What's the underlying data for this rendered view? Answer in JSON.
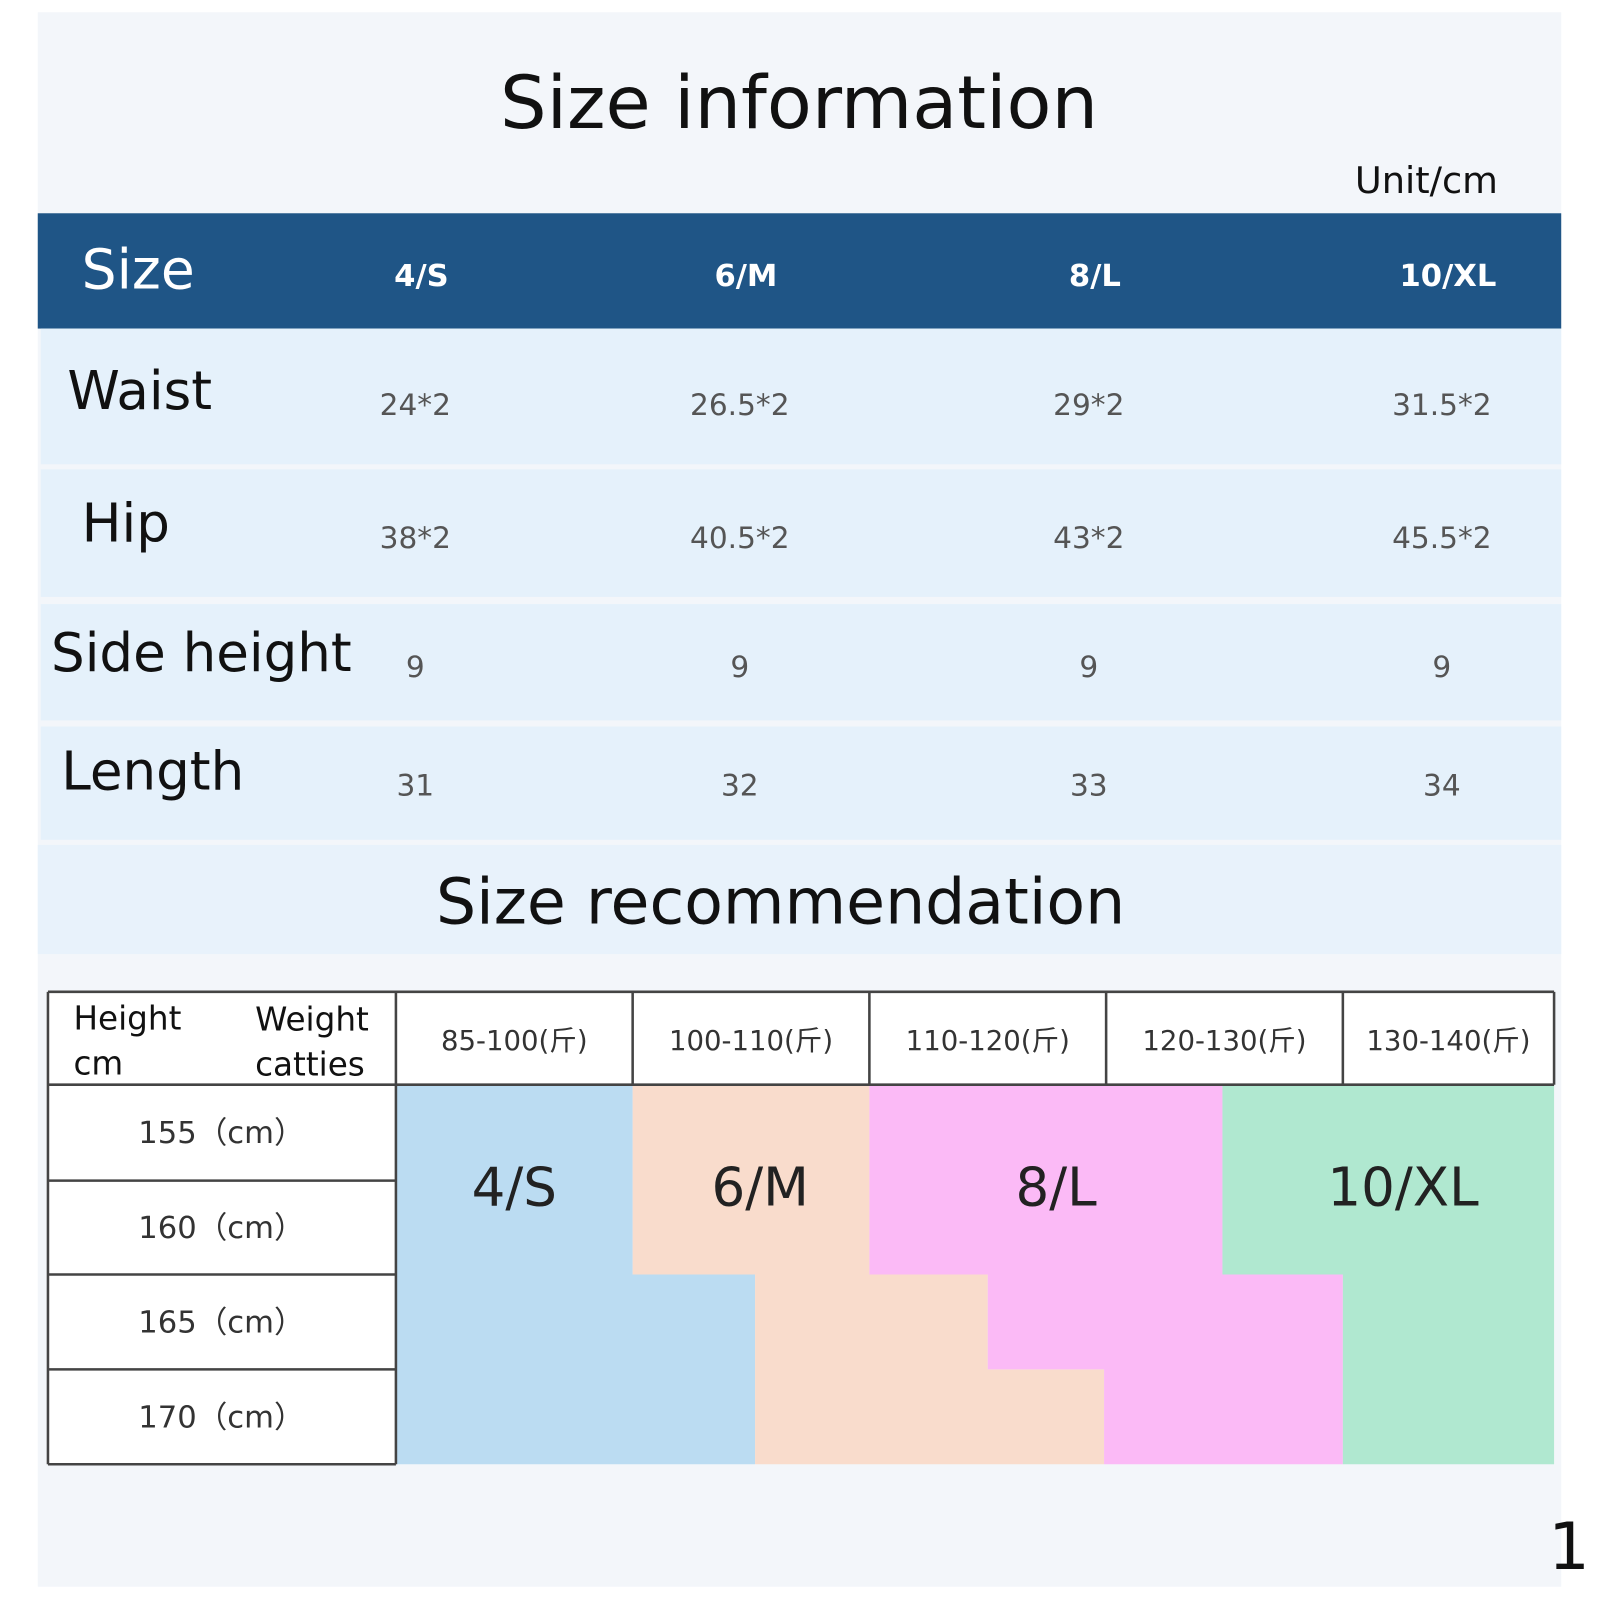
{
  "title": "Size information",
  "unit": "Unit/cm",
  "size_table": {
    "header": [
      "Size",
      "4/S",
      "6/M",
      "8/L",
      "10/XL"
    ],
    "rows": [
      [
        "Waist",
        "24*2",
        "26.5*2",
        "29*2",
        "31.5*2"
      ],
      [
        "Hip",
        "38*2",
        "40.5*2",
        "43*2",
        "45.5*2"
      ],
      [
        "Side height",
        "9",
        "9",
        "9",
        "9"
      ],
      [
        "Length",
        "31",
        "32",
        "33",
        "34"
      ]
    ]
  },
  "recommendation": {
    "title": "Size recommendation",
    "corner": {
      "height_label": "Height",
      "height_unit": "cm",
      "weight_label": "Weight",
      "weight_unit": "catties"
    },
    "weights": [
      "85-100(斤)",
      "100-110(斤)",
      "110-120(斤)",
      "120-130(斤)",
      "130-140(斤)"
    ],
    "heights": [
      "155（cm）",
      "160（cm）",
      "165（cm）",
      "170（cm）"
    ],
    "sizes": [
      "4/S",
      "6/M",
      "8/L",
      "10/XL"
    ]
  },
  "page_number": "1"
}
